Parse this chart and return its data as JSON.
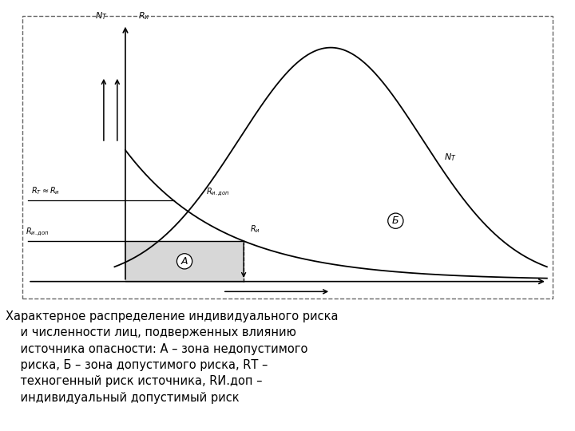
{
  "fig_bg": "#ffffff",
  "box_bg": "#ffffff",
  "line_color": "#000000",
  "dashed_border_color": "#555555",
  "fill_A_color": "#b8b8b8",
  "caption": "Характерное распределение индивидуального риска\n    и численности лиц, подверженных влиянию\n    источника опасности: А – зона недопустимого\n    риска, Б – зона допустимого риска, RТ –\n    техногенный риск источника, RИ.доп –\n    индивидуальный допустимый риск",
  "xlim": [
    0,
    10
  ],
  "ylim": [
    0,
    10
  ],
  "yaxis_x": 2.0,
  "xaxis_y": 0.7,
  "ri_dop_y": 2.1,
  "rt_y": 3.5,
  "nt_peak_x": 5.8,
  "nt_peak_y": 8.8,
  "nt_sigma": 1.7,
  "ri_start_x": 2.0,
  "ri_amp": 4.5,
  "ri_decay": 0.55
}
